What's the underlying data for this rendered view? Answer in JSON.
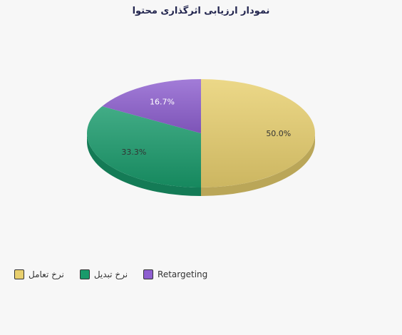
{
  "chart_data": {
    "type": "pie",
    "title": "نمودار ارزیابی اثرگذاری محتوا",
    "slices": [
      {
        "name": "نرخ تعامل",
        "value": 50.0,
        "label": "50.0%",
        "color": "#e8cf6e",
        "rtl": true
      },
      {
        "name": "نرخ تبدیل",
        "value": 33.3,
        "label": "33.3%",
        "color": "#199a6b",
        "rtl": true
      },
      {
        "name": "Retargeting",
        "value": 16.7,
        "label": "16.7%",
        "color": "#8e5fd0",
        "rtl": false
      }
    ],
    "legend_position": "bottom-left",
    "style": "3d"
  }
}
